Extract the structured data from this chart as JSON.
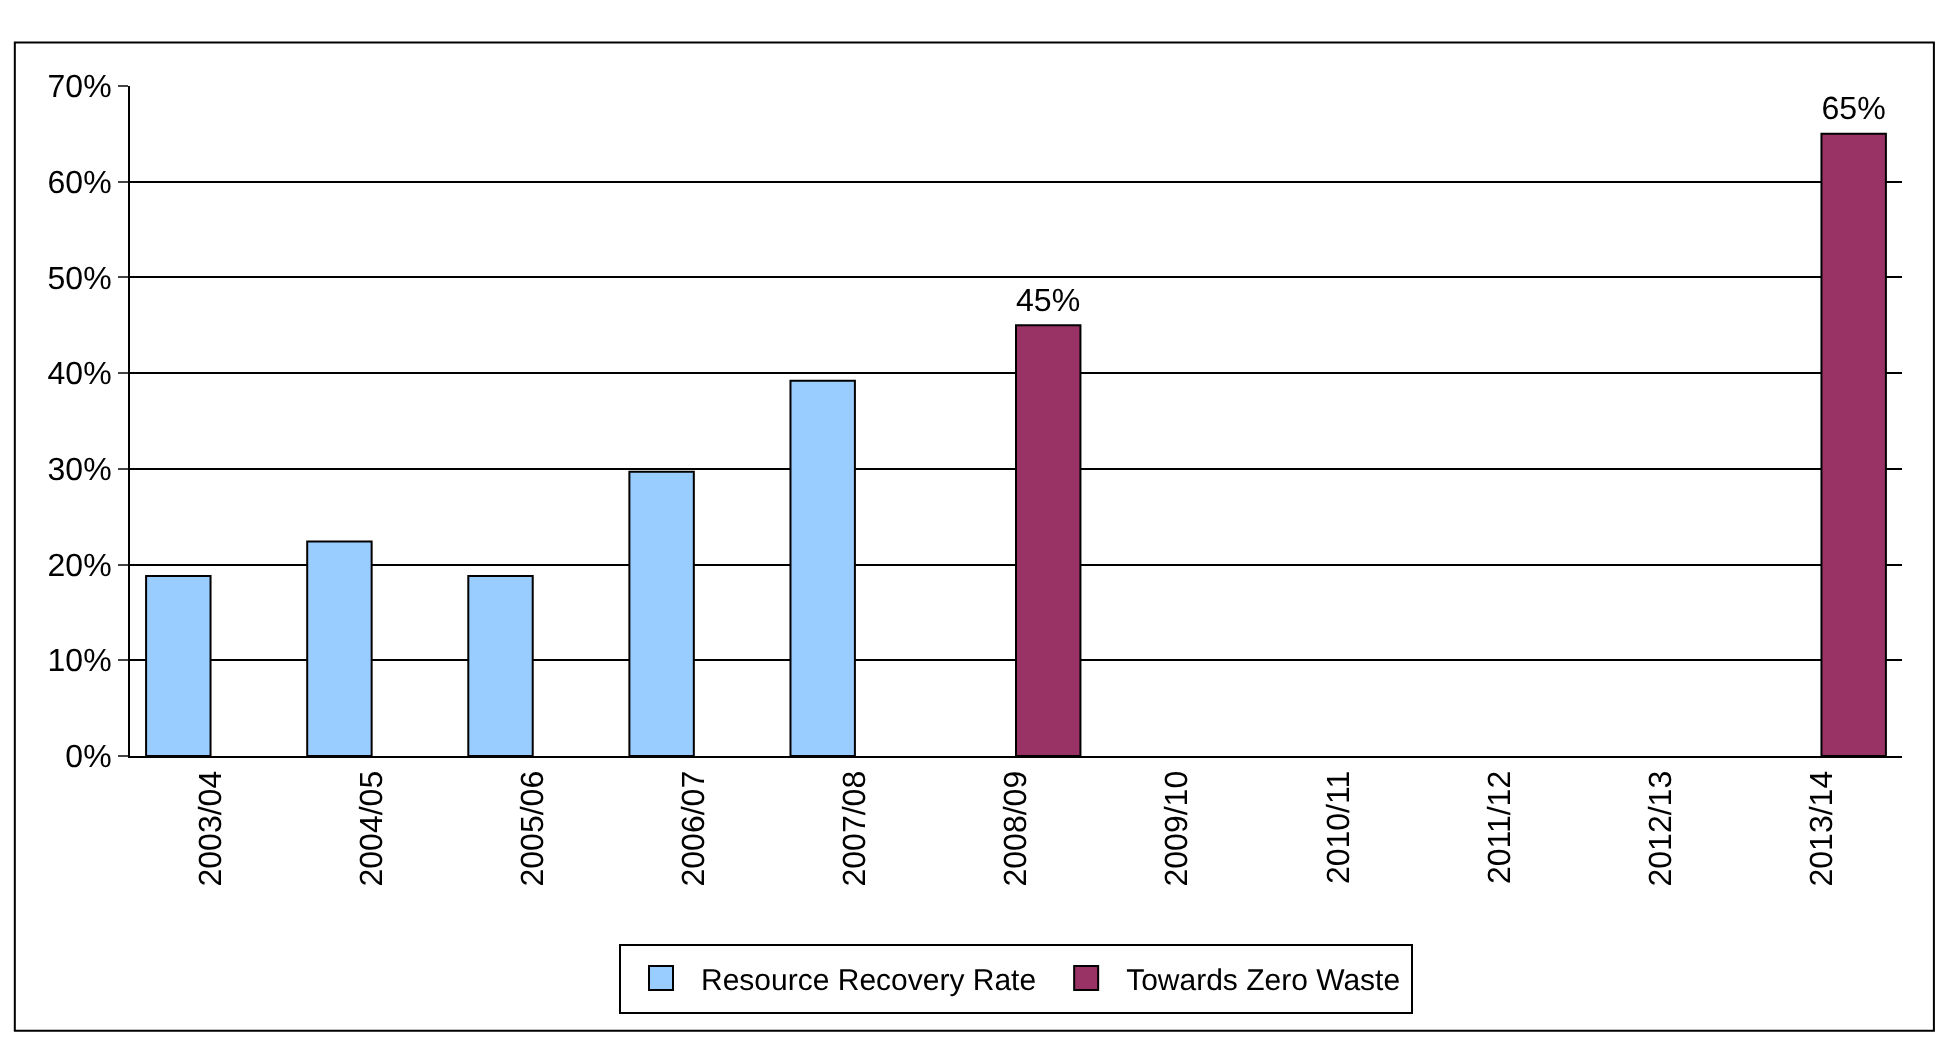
{
  "chart_data": {
    "type": "bar",
    "categories": [
      "2003/04",
      "2004/05",
      "2005/06",
      "2006/07",
      "2007/08",
      "2008/09",
      "2009/10",
      "2010/11",
      "2011/12",
      "2012/13",
      "2013/14"
    ],
    "series": [
      {
        "name": "Resource Recovery Rate",
        "color": "#99ccff",
        "values": [
          18.8,
          22.4,
          18.8,
          29.7,
          39.2,
          null,
          null,
          null,
          null,
          null,
          null
        ]
      },
      {
        "name": "Towards Zero Waste",
        "color": "#993366",
        "values": [
          null,
          null,
          null,
          null,
          null,
          45,
          null,
          null,
          null,
          null,
          65
        ],
        "value_labels": [
          null,
          null,
          null,
          null,
          null,
          "45%",
          null,
          null,
          null,
          null,
          "65%"
        ]
      }
    ],
    "ylim": [
      0,
      70
    ],
    "yticks": [
      {
        "value": 0,
        "label": "0%"
      },
      {
        "value": 10,
        "label": "10%"
      },
      {
        "value": 20,
        "label": "20%"
      },
      {
        "value": 30,
        "label": "30%"
      },
      {
        "value": 40,
        "label": "40%"
      },
      {
        "value": 50,
        "label": "50%"
      },
      {
        "value": 60,
        "label": "60%"
      },
      {
        "value": 70,
        "label": "70%"
      }
    ],
    "grid": "y",
    "legend": "bottom"
  }
}
